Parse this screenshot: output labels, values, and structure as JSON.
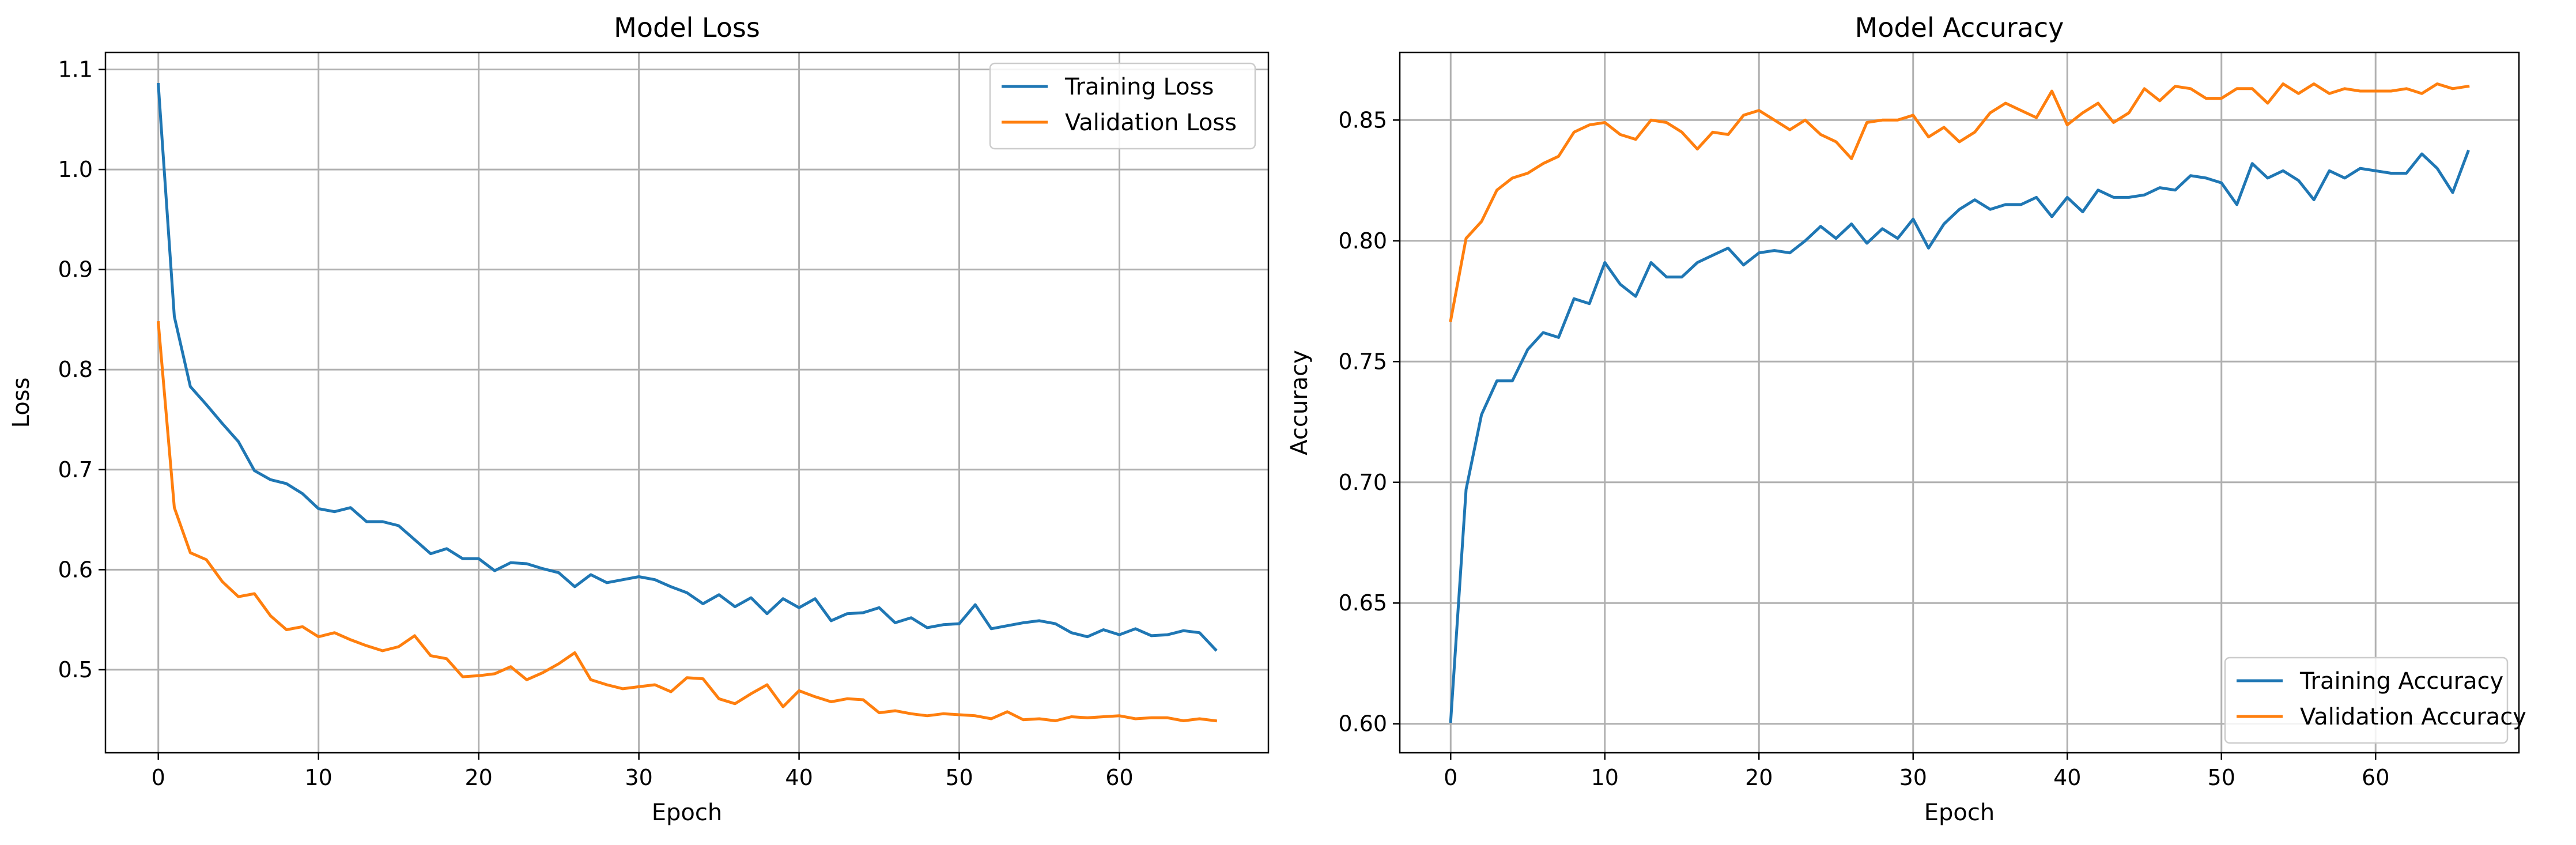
{
  "chart_data": [
    {
      "type": "line",
      "title": "Model Loss",
      "xlabel": "Epoch",
      "ylabel": "Loss",
      "xlim": [
        -3.3,
        69.3
      ],
      "ylim": [
        0.417,
        1.117
      ],
      "xticks": [
        0,
        10,
        20,
        30,
        40,
        50,
        60
      ],
      "yticks": [
        0.5,
        0.6,
        0.7,
        0.8,
        0.9,
        1.0,
        1.1
      ],
      "ytick_format": 1,
      "grid": true,
      "legend_position": "upper-right",
      "x": [
        0,
        1,
        2,
        3,
        4,
        5,
        6,
        7,
        8,
        9,
        10,
        11,
        12,
        13,
        14,
        15,
        16,
        17,
        18,
        19,
        20,
        21,
        22,
        23,
        24,
        25,
        26,
        27,
        28,
        29,
        30,
        31,
        32,
        33,
        34,
        35,
        36,
        37,
        38,
        39,
        40,
        41,
        42,
        43,
        44,
        45,
        46,
        47,
        48,
        49,
        50,
        51,
        52,
        53,
        54,
        55,
        56,
        57,
        58,
        59,
        60,
        61,
        62,
        63,
        64,
        65,
        66
      ],
      "series": [
        {
          "name": "Training Loss",
          "color": "#1f77b4",
          "values": [
            1.085,
            0.853,
            0.783,
            0.765,
            0.746,
            0.728,
            0.699,
            0.69,
            0.686,
            0.676,
            0.661,
            0.658,
            0.662,
            0.648,
            0.648,
            0.644,
            0.63,
            0.616,
            0.621,
            0.611,
            0.611,
            0.599,
            0.607,
            0.606,
            0.601,
            0.597,
            0.583,
            0.595,
            0.587,
            0.59,
            0.593,
            0.59,
            0.583,
            0.577,
            0.566,
            0.575,
            0.563,
            0.572,
            0.556,
            0.571,
            0.562,
            0.571,
            0.549,
            0.556,
            0.557,
            0.562,
            0.547,
            0.552,
            0.542,
            0.545,
            0.546,
            0.565,
            0.541,
            0.544,
            0.547,
            0.549,
            0.546,
            0.537,
            0.533,
            0.54,
            0.535,
            0.541,
            0.534,
            0.535,
            0.539,
            0.537,
            0.52
          ]
        },
        {
          "name": "Validation Loss",
          "color": "#ff7f0e",
          "values": [
            0.847,
            0.662,
            0.617,
            0.61,
            0.588,
            0.573,
            0.576,
            0.554,
            0.54,
            0.543,
            0.533,
            0.537,
            0.53,
            0.524,
            0.519,
            0.523,
            0.534,
            0.514,
            0.511,
            0.493,
            0.494,
            0.496,
            0.503,
            0.49,
            0.497,
            0.506,
            0.517,
            0.49,
            0.485,
            0.481,
            0.483,
            0.485,
            0.478,
            0.492,
            0.491,
            0.471,
            0.466,
            0.476,
            0.485,
            0.463,
            0.479,
            0.473,
            0.468,
            0.471,
            0.47,
            0.457,
            0.459,
            0.456,
            0.454,
            0.456,
            0.455,
            0.454,
            0.451,
            0.458,
            0.45,
            0.451,
            0.449,
            0.453,
            0.452,
            0.453,
            0.454,
            0.451,
            0.452,
            0.452,
            0.449,
            0.451,
            0.449
          ]
        }
      ]
    },
    {
      "type": "line",
      "title": "Model Accuracy",
      "xlabel": "Epoch",
      "ylabel": "Accuracy",
      "xlim": [
        -3.3,
        69.3
      ],
      "ylim": [
        0.588,
        0.878
      ],
      "xticks": [
        0,
        10,
        20,
        30,
        40,
        50,
        60
      ],
      "yticks": [
        0.6,
        0.65,
        0.7,
        0.75,
        0.8,
        0.85
      ],
      "ytick_format": 2,
      "grid": true,
      "legend_position": "lower-right",
      "x": [
        0,
        1,
        2,
        3,
        4,
        5,
        6,
        7,
        8,
        9,
        10,
        11,
        12,
        13,
        14,
        15,
        16,
        17,
        18,
        19,
        20,
        21,
        22,
        23,
        24,
        25,
        26,
        27,
        28,
        29,
        30,
        31,
        32,
        33,
        34,
        35,
        36,
        37,
        38,
        39,
        40,
        41,
        42,
        43,
        44,
        45,
        46,
        47,
        48,
        49,
        50,
        51,
        52,
        53,
        54,
        55,
        56,
        57,
        58,
        59,
        60,
        61,
        62,
        63,
        64,
        65,
        66
      ],
      "series": [
        {
          "name": "Training Accuracy",
          "color": "#1f77b4",
          "values": [
            0.601,
            0.697,
            0.728,
            0.742,
            0.742,
            0.755,
            0.762,
            0.76,
            0.776,
            0.774,
            0.791,
            0.782,
            0.777,
            0.791,
            0.785,
            0.785,
            0.791,
            0.794,
            0.797,
            0.79,
            0.795,
            0.796,
            0.795,
            0.8,
            0.806,
            0.801,
            0.807,
            0.799,
            0.805,
            0.801,
            0.809,
            0.797,
            0.807,
            0.813,
            0.817,
            0.813,
            0.815,
            0.815,
            0.818,
            0.81,
            0.818,
            0.812,
            0.821,
            0.818,
            0.818,
            0.819,
            0.822,
            0.821,
            0.827,
            0.826,
            0.824,
            0.815,
            0.832,
            0.826,
            0.829,
            0.825,
            0.817,
            0.829,
            0.826,
            0.83,
            0.829,
            0.828,
            0.828,
            0.836,
            0.83,
            0.82,
            0.837
          ]
        },
        {
          "name": "Validation Accuracy",
          "color": "#ff7f0e",
          "values": [
            0.767,
            0.801,
            0.808,
            0.821,
            0.826,
            0.828,
            0.832,
            0.835,
            0.845,
            0.848,
            0.849,
            0.844,
            0.842,
            0.85,
            0.849,
            0.845,
            0.838,
            0.845,
            0.844,
            0.852,
            0.854,
            0.85,
            0.846,
            0.85,
            0.844,
            0.841,
            0.834,
            0.849,
            0.85,
            0.85,
            0.852,
            0.843,
            0.847,
            0.841,
            0.845,
            0.853,
            0.857,
            0.854,
            0.851,
            0.862,
            0.848,
            0.853,
            0.857,
            0.849,
            0.853,
            0.863,
            0.858,
            0.864,
            0.863,
            0.859,
            0.859,
            0.863,
            0.863,
            0.857,
            0.865,
            0.861,
            0.865,
            0.861,
            0.863,
            0.862,
            0.862,
            0.862,
            0.863,
            0.861,
            0.865,
            0.863,
            0.864
          ]
        }
      ]
    }
  ]
}
